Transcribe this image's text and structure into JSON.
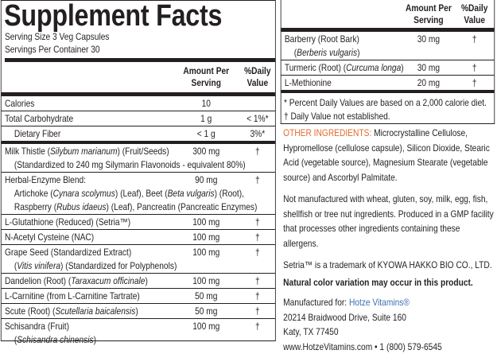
{
  "header": {
    "title": "Supplement Facts",
    "serving_size": "Serving Size 3 Veg Capsules",
    "servings_per_container": "Servings Per Container 30"
  },
  "left_table": {
    "columns": [
      "Amount Per Serving",
      "%Daily Value"
    ],
    "rows": [
      {
        "lines": [
          [
            "Calories"
          ]
        ],
        "amount": "10"
      },
      {
        "lines": [
          [
            "Total Carbohydrate"
          ]
        ],
        "amount": "1 g",
        "dv": "< 1%*"
      },
      {
        "level": 1,
        "lines": [
          [
            "Dietary Fiber"
          ]
        ],
        "amount": "< 1 g",
        "dv": "3%*"
      },
      {
        "lines": [
          [
            "Milk Thistle (",
            {
              "italic": "Silybum marianum"
            },
            ") (Fruit/Seeds)"
          ],
          [
            "(Standardized to 240 mg Silymarin Flavonoids - equivalent 80%)"
          ]
        ],
        "amount": "300 mg",
        "dv": "†"
      },
      {
        "lines": [
          [
            "Herbal-Enzyme Blend:"
          ],
          [
            "Artichoke (",
            {
              "italic": "Cynara scolymus"
            },
            ") (Leaf), Beet (",
            {
              "italic": "Beta vulgaris"
            },
            ") (Root),"
          ],
          [
            "Raspberry (",
            {
              "italic": "Rubus idaeus"
            },
            ") (Leaf), Pancreatin (Pancreatic Enzymes)"
          ]
        ],
        "amount": "90 mg",
        "dv": "†"
      },
      {
        "lines": [
          [
            "L-Glutathione (Reduced) (Setria™)"
          ]
        ],
        "amount": "100 mg",
        "dv": "†"
      },
      {
        "lines": [
          [
            "N-Acetyl Cysteine (NAC)"
          ]
        ],
        "amount": "100 mg",
        "dv": "†"
      },
      {
        "lines": [
          [
            "Grape Seed (Standardized Extract)"
          ],
          [
            "(",
            {
              "italic": "Vitis vinifera"
            },
            ") (Standardized for Polyphenols)"
          ]
        ],
        "amount": "100 mg",
        "dv": "†"
      },
      {
        "lines": [
          [
            "Dandelion (Root) (",
            {
              "italic": "Taraxacum officinale"
            },
            ")"
          ]
        ],
        "amount": "100 mg",
        "dv": "†"
      },
      {
        "lines": [
          [
            "L-Carnitine (from L-Carnitine Tartrate)"
          ]
        ],
        "amount": "50 mg",
        "dv": "†"
      },
      {
        "lines": [
          [
            "Scute (Root) (",
            {
              "italic": "Scutellaria baicalensis"
            },
            ")"
          ]
        ],
        "amount": "50 mg",
        "dv": "†"
      },
      {
        "lines": [
          [
            "Schisandra (Fruit)"
          ],
          [
            "(",
            {
              "italic": "Schisandra chinensis"
            },
            ")"
          ]
        ],
        "amount": "100 mg",
        "dv": "†"
      }
    ]
  },
  "right_table": {
    "columns": [
      "Amount Per Serving",
      "%Daily Value"
    ],
    "rows": [
      {
        "lines": [
          [
            "Barberry (Root Bark)"
          ],
          [
            "(",
            {
              "italic": "Berberis vulgaris"
            },
            ")"
          ]
        ],
        "amount": "30 mg",
        "dv": "†"
      },
      {
        "lines": [
          [
            "Turmeric (Root) (",
            {
              "italic": "Curcuma longa"
            },
            ")"
          ]
        ],
        "amount": "30 mg",
        "dv": "†"
      },
      {
        "lines": [
          [
            "L-Methionine"
          ]
        ],
        "amount": "20 mg",
        "dv": "†"
      }
    ],
    "footnotes": [
      "* Percent Daily Values are based on a 2,000 calorie diet.",
      "† Daily Value not established."
    ]
  },
  "other_ingredients": {
    "label": "OTHER INGREDIENTS:",
    "text": "Microcrystalline Cellulose, Hypromellose (cellulose capsule), Silicon Dioxide, Stearic Acid (vegetable source), Magnesium Stearate (vegetable source) and Ascorbyl Palmitate."
  },
  "allergen_statement": "Not manufactured with wheat, gluten, soy, milk, egg, fish, shellfish or tree nut ingredients. Produced in a GMP facility that processes other ingredients containing these allergens.",
  "trademark": "Setria™ is a trademark of KYOWA HAKKO BIO CO., LTD.",
  "color_note": "Natural color variation may occur in this product.",
  "manufacturer": {
    "label": "Manufactured for:",
    "brand": "Hotze Vitamins®",
    "address": [
      "20214 Braidwood Drive, Suite 160",
      "Katy, TX  77450"
    ],
    "contact": "www.HotzeVitamins.com • 1 (800) 579-6545"
  }
}
